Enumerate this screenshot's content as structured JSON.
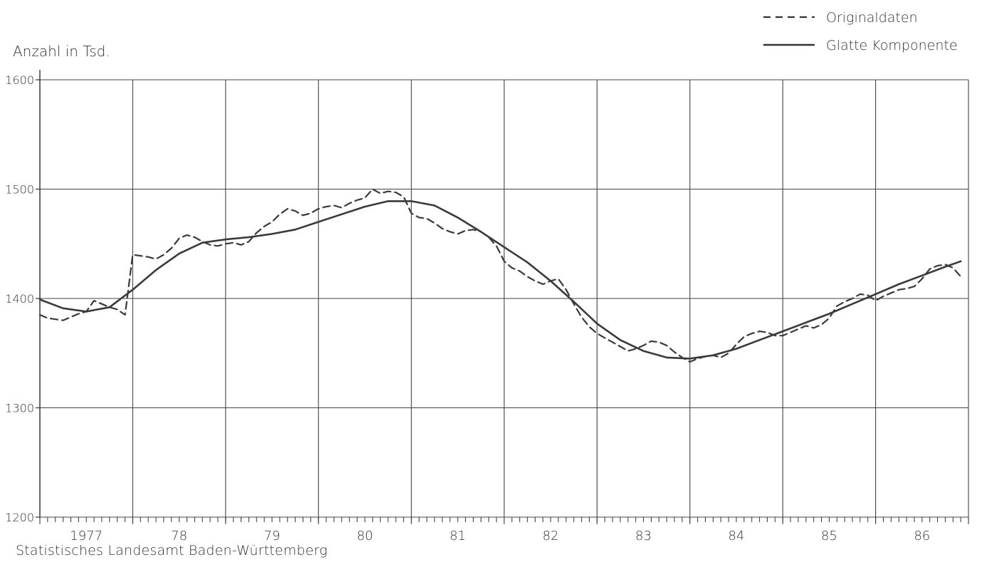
{
  "chart_data": {
    "type": "line",
    "title": "",
    "ylabel": "Anzahl in Tsd.",
    "xlabel": "",
    "ylim": [
      1200,
      1600
    ],
    "yticks": [
      "1200",
      "1300",
      "1400",
      "1500",
      "1600"
    ],
    "year_labels": [
      "1977",
      "78",
      "79",
      "80",
      "81",
      "82",
      "83",
      "84",
      "85",
      "86"
    ],
    "xlim": [
      1977.0,
      1987.0
    ],
    "legend_position": "top-right",
    "grid": true,
    "series": [
      {
        "name": "Originaldaten",
        "style": "dashed",
        "x": [
          1977.0,
          1977.083,
          1977.167,
          1977.25,
          1977.333,
          1977.417,
          1977.5,
          1977.583,
          1977.667,
          1977.75,
          1977.833,
          1977.917,
          1978.0,
          1978.083,
          1978.167,
          1978.25,
          1978.333,
          1978.417,
          1978.5,
          1978.583,
          1978.667,
          1978.75,
          1978.833,
          1978.917,
          1979.0,
          1979.083,
          1979.167,
          1979.25,
          1979.333,
          1979.417,
          1979.5,
          1979.583,
          1979.667,
          1979.75,
          1979.833,
          1979.917,
          1980.0,
          1980.083,
          1980.167,
          1980.25,
          1980.333,
          1980.417,
          1980.5,
          1980.583,
          1980.667,
          1980.75,
          1980.833,
          1980.917,
          1981.0,
          1981.083,
          1981.167,
          1981.25,
          1981.333,
          1981.417,
          1981.5,
          1981.583,
          1981.667,
          1981.75,
          1981.833,
          1981.917,
          1982.0,
          1982.083,
          1982.167,
          1982.25,
          1982.333,
          1982.417,
          1982.5,
          1982.583,
          1982.667,
          1982.75,
          1982.833,
          1982.917,
          1983.0,
          1983.083,
          1983.167,
          1983.25,
          1983.333,
          1983.417,
          1983.5,
          1983.583,
          1983.667,
          1983.75,
          1983.833,
          1983.917,
          1984.0,
          1984.083,
          1984.167,
          1984.25,
          1984.333,
          1984.417,
          1984.5,
          1984.583,
          1984.667,
          1984.75,
          1984.833,
          1984.917,
          1985.0,
          1985.083,
          1985.167,
          1985.25,
          1985.333,
          1985.417,
          1985.5,
          1985.583,
          1985.667,
          1985.75,
          1985.833,
          1985.917,
          1986.0,
          1986.083,
          1986.167,
          1986.25,
          1986.333,
          1986.417,
          1986.5,
          1986.583,
          1986.667,
          1986.75,
          1986.833,
          1986.917
        ],
        "values": [
          1385,
          1382,
          1381,
          1380,
          1383,
          1386,
          1388,
          1398,
          1395,
          1392,
          1390,
          1385,
          1440,
          1439,
          1438,
          1436,
          1440,
          1446,
          1455,
          1458,
          1456,
          1452,
          1449,
          1448,
          1450,
          1451,
          1449,
          1452,
          1460,
          1466,
          1470,
          1477,
          1482,
          1480,
          1476,
          1478,
          1482,
          1484,
          1485,
          1483,
          1487,
          1490,
          1492,
          1500,
          1496,
          1498,
          1497,
          1493,
          1478,
          1474,
          1473,
          1469,
          1464,
          1461,
          1459,
          1462,
          1463,
          1461,
          1456,
          1448,
          1434,
          1428,
          1425,
          1420,
          1416,
          1413,
          1416,
          1418,
          1408,
          1395,
          1383,
          1374,
          1368,
          1364,
          1360,
          1356,
          1352,
          1354,
          1357,
          1361,
          1360,
          1357,
          1351,
          1346,
          1342,
          1345,
          1347,
          1348,
          1346,
          1350,
          1358,
          1365,
          1368,
          1370,
          1369,
          1366,
          1366,
          1369,
          1372,
          1375,
          1373,
          1376,
          1382,
          1393,
          1397,
          1400,
          1404,
          1403,
          1398,
          1402,
          1405,
          1408,
          1409,
          1411,
          1418,
          1427,
          1430,
          1431,
          1428,
          1420
        ]
      },
      {
        "name": "Glatte Komponente",
        "style": "solid",
        "x": [
          1977.0,
          1977.25,
          1977.5,
          1977.75,
          1978.0,
          1978.25,
          1978.5,
          1978.75,
          1979.0,
          1979.25,
          1979.5,
          1979.75,
          1980.0,
          1980.25,
          1980.5,
          1980.75,
          1981.0,
          1981.25,
          1981.5,
          1981.75,
          1982.0,
          1982.25,
          1982.5,
          1982.75,
          1983.0,
          1983.25,
          1983.5,
          1983.75,
          1984.0,
          1984.25,
          1984.5,
          1984.75,
          1985.0,
          1985.25,
          1985.5,
          1985.75,
          1986.0,
          1986.25,
          1986.5,
          1986.75,
          1986.917
        ],
        "values": [
          1399,
          1391,
          1388,
          1392,
          1408,
          1426,
          1441,
          1451,
          1454,
          1456,
          1459,
          1463,
          1470,
          1477,
          1484,
          1489,
          1489,
          1485,
          1474,
          1461,
          1447,
          1433,
          1416,
          1397,
          1377,
          1362,
          1352,
          1346,
          1345,
          1348,
          1354,
          1362,
          1370,
          1378,
          1386,
          1395,
          1404,
          1413,
          1421,
          1429,
          1434
        ]
      }
    ]
  },
  "footer": "Statistisches Landesamt Baden-Württemberg"
}
